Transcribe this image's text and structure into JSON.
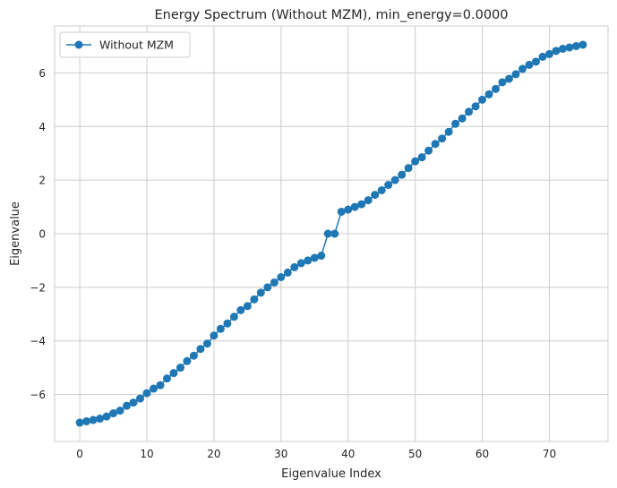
{
  "chart_data": {
    "type": "line",
    "title": "Energy Spectrum (Without MZM), min_energy=0.0000",
    "xlabel": "Eigenvalue Index",
    "ylabel": "Eigenvalue",
    "xlim": [
      -3.75,
      78.75
    ],
    "ylim": [
      -7.75,
      7.75
    ],
    "xticks": [
      0,
      10,
      20,
      30,
      40,
      50,
      60,
      70
    ],
    "yticks": [
      -6,
      -4,
      -2,
      0,
      2,
      4,
      6
    ],
    "grid": true,
    "legend_position": "top-left",
    "series": [
      {
        "name": "Without MZM",
        "color": "#1f77b4",
        "marker": "circle",
        "x": [
          0,
          1,
          2,
          3,
          4,
          5,
          6,
          7,
          8,
          9,
          10,
          11,
          12,
          13,
          14,
          15,
          16,
          17,
          18,
          19,
          20,
          21,
          22,
          23,
          24,
          25,
          26,
          27,
          28,
          29,
          30,
          31,
          32,
          33,
          34,
          35,
          36,
          37,
          38,
          39,
          40,
          41,
          42,
          43,
          44,
          45,
          46,
          47,
          48,
          49,
          50,
          51,
          52,
          53,
          54,
          55,
          56,
          57,
          58,
          59,
          60,
          61,
          62,
          63,
          64,
          65,
          66,
          67,
          68,
          69,
          70,
          71,
          72,
          73,
          74,
          75
        ],
        "y": [
          -7.05,
          -7.0,
          -6.95,
          -6.9,
          -6.82,
          -6.7,
          -6.6,
          -6.42,
          -6.3,
          -6.15,
          -5.95,
          -5.78,
          -5.65,
          -5.4,
          -5.2,
          -5.0,
          -4.75,
          -4.55,
          -4.3,
          -4.1,
          -3.8,
          -3.55,
          -3.35,
          -3.1,
          -2.85,
          -2.7,
          -2.45,
          -2.2,
          -2.0,
          -1.82,
          -1.62,
          -1.45,
          -1.25,
          -1.1,
          -1.0,
          -0.9,
          -0.82,
          0.0,
          0.0,
          0.82,
          0.9,
          1.0,
          1.1,
          1.25,
          1.45,
          1.62,
          1.82,
          2.0,
          2.2,
          2.45,
          2.7,
          2.85,
          3.1,
          3.35,
          3.55,
          3.8,
          4.1,
          4.3,
          4.55,
          4.75,
          5.0,
          5.2,
          5.4,
          5.65,
          5.78,
          5.95,
          6.15,
          6.3,
          6.42,
          6.6,
          6.7,
          6.82,
          6.9,
          6.95,
          7.0,
          7.05
        ]
      }
    ]
  }
}
